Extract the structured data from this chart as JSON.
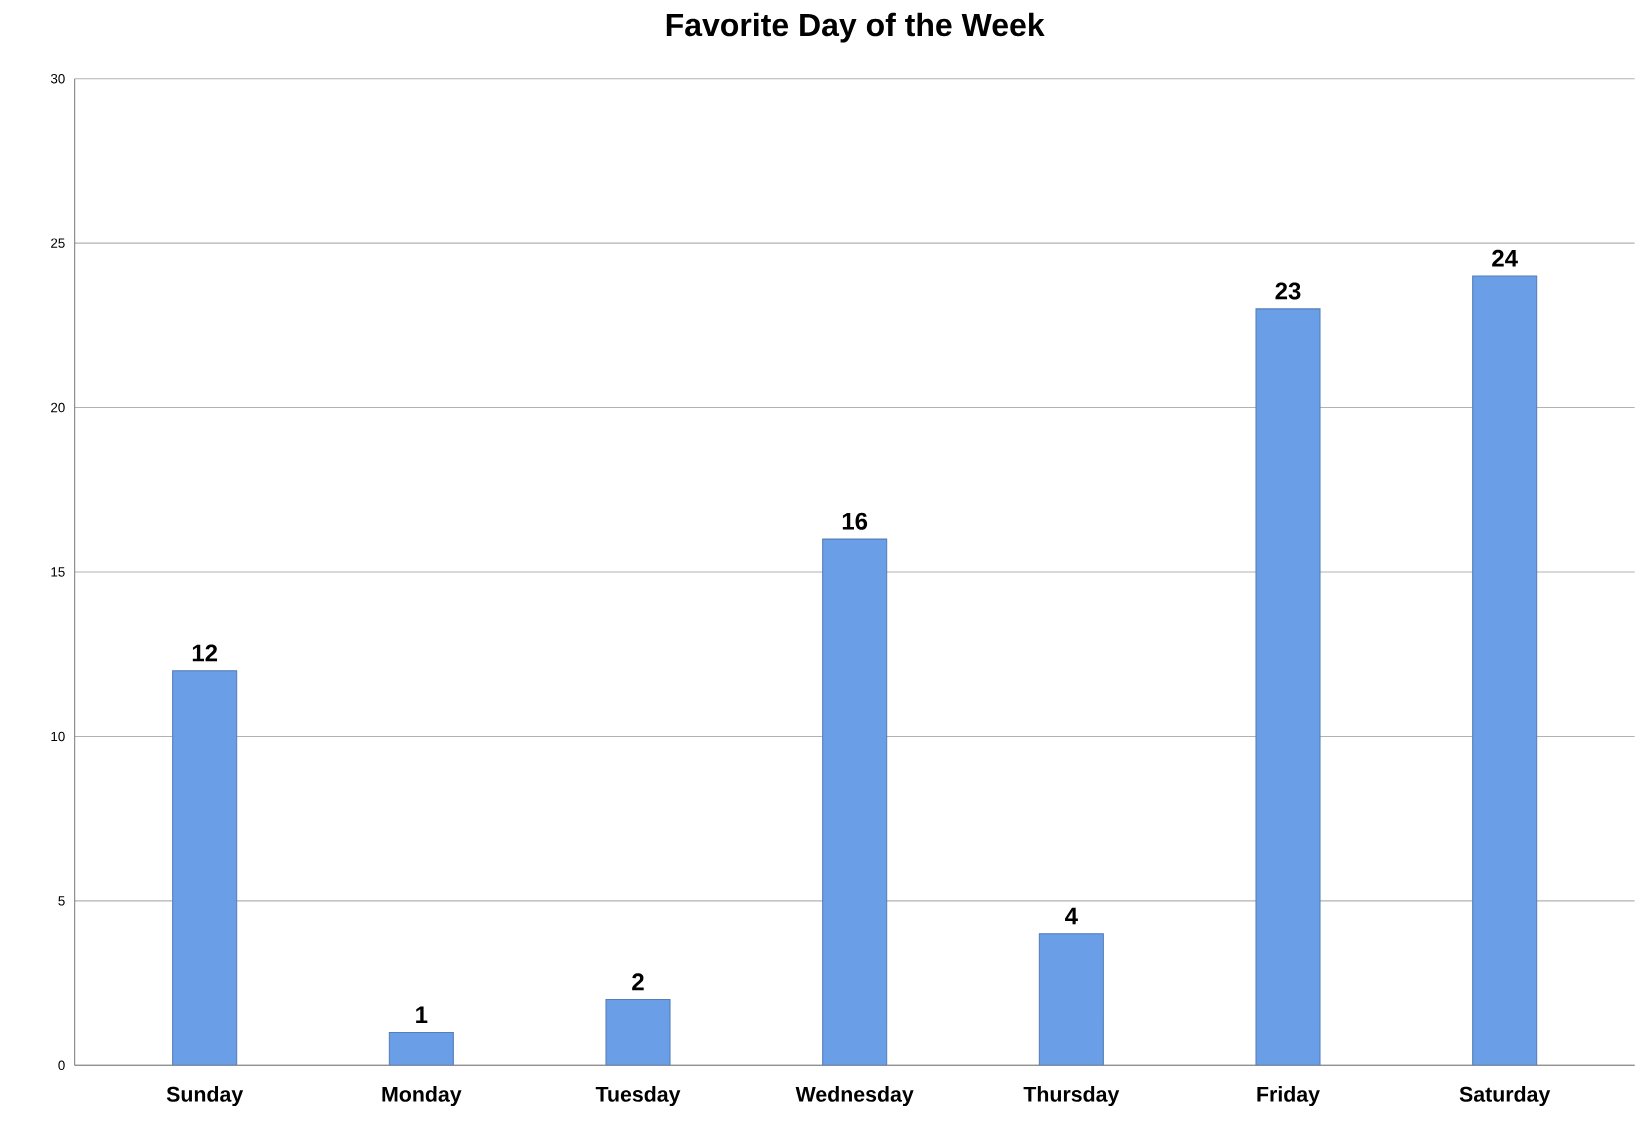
{
  "chart_data": {
    "type": "bar",
    "title": "Favorite Day of the Week",
    "categories": [
      "Sunday",
      "Monday",
      "Tuesday",
      "Wednesday",
      "Thursday",
      "Friday",
      "Saturday"
    ],
    "values": [
      12,
      1,
      2,
      16,
      4,
      23,
      24
    ],
    "color": "#6a9ee6",
    "ylim": [
      0,
      30
    ],
    "yticks": [
      0,
      5,
      10,
      15,
      20,
      25,
      30
    ],
    "grid": "y",
    "data_labels": true
  }
}
